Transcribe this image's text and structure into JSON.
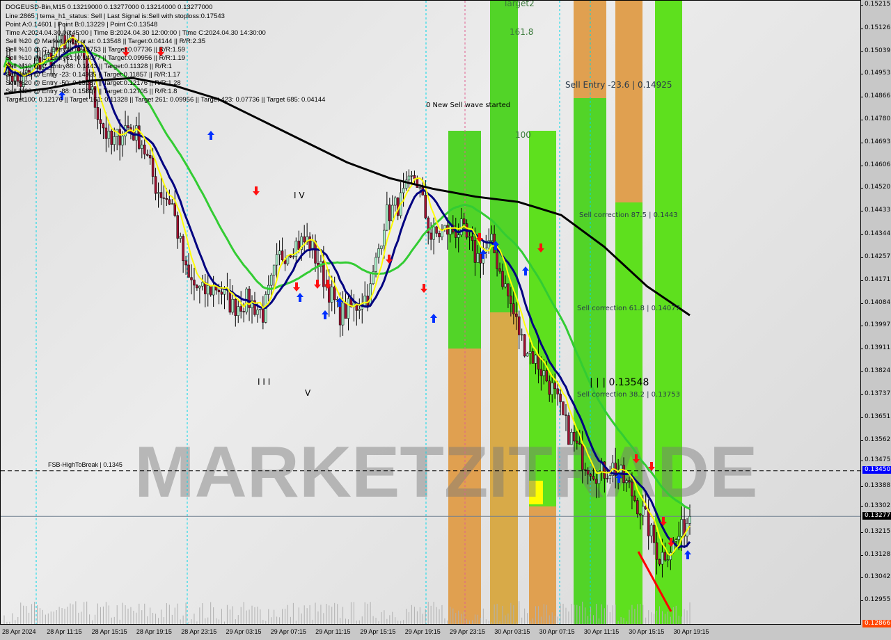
{
  "header": {
    "lines": [
      "DOGEUSD-Bin,M15  0.13219000 0.13277000 0.13214000 0.13277000",
      "Line:2865 | tema_h1_status: Sell | Last Signal is:Sell with stoploss:0.17543",
      "Point A:0.14601 | Point B:0.13229 | Point C:0.13548",
      "Time A:2024.04.30 00:45:00 | Time B:2024.04.30 12:00:00 | Time C:2024.04.30 14:30:00",
      "Sell %20 @ Market price or at: 0.13548 || Target:0.04144 || R/R:2.35",
      "Sell %10 @ C_Entry38: 0.13753 || Target:0.07736 || R/R:1.59",
      "Sell %10 @ C_Entry61: 0.14077 || Target:0.09956 || R/R:1.19",
      "Sell %10 @ C_Entry88: 0.1443 || Target:0.11328 || R/R:1",
      "Sell %10 @ Entry -23: 0.14925 || Target:0.11857 || R/R:1.17",
      "Sell %20 @ Entry -50: 0.15287 || Target:0.12176 || R/R:1.28",
      "Sell %20 @ Entry -88: 0.15817 || Target:0.12705 || R/R:1.8",
      "Target100: 0.12176 || Target 161: 0.11328 || Target 261: 0.09956 || Target 423: 0.07736 || Target 685: 0.04144"
    ]
  },
  "annotations": {
    "target2": "Target2",
    "fib_161": "161.8",
    "fib_100": "100",
    "new_wave": "0 New Sell wave started",
    "sell_entry": "Sell Entry -23.6 | 0.14925",
    "corr_875": "Sell correction 87.5 | 0.1443",
    "corr_618": "Sell correction 61.8 | 0.14077",
    "corr_382": "Sell correction 38.2 | 0.13753",
    "point_c": "| | | 0.13548",
    "wave_iv": "I V",
    "wave_iii": "I I I",
    "wave_v": "V",
    "fsb": "FSB-HighToBreak | 0.1345",
    "watermark": "MARKETZITRADE"
  },
  "colors": {
    "bull_candle": "#a8f0c8",
    "bear_candle": "#a01030",
    "ma_black": "#000000",
    "ma_green": "#33cc33",
    "ma_navy": "#000080",
    "ma_yellow": "#ffff00",
    "zone_green": "#5ee01e",
    "zone_orange": "#e8a050",
    "bid_tag": "#000000",
    "fsb_tag": "#0000ff",
    "low_tag": "#ff4500"
  },
  "chart_data": {
    "type": "candlestick",
    "symbol": "DOGEUSD-Bin",
    "timeframe": "M15",
    "ylim": [
      0.12866,
      0.15215
    ],
    "y_ticks": [
      "0.15215",
      "0.15126",
      "0.15039",
      "0.14953",
      "0.14866",
      "0.14780",
      "0.14693",
      "0.14606",
      "0.14520",
      "0.14433",
      "0.14344",
      "0.14257",
      "0.14171",
      "0.14084",
      "0.13997",
      "0.13911",
      "0.13824",
      "0.13737",
      "0.13651",
      "0.13562",
      "0.13475",
      "0.13388",
      "0.13302",
      "0.13215",
      "0.13128",
      "0.13042",
      "0.12955"
    ],
    "x_ticks": [
      "28 Apr 2024",
      "28 Apr 11:15",
      "28 Apr 15:15",
      "28 Apr 19:15",
      "28 Apr 23:15",
      "29 Apr 03:15",
      "29 Apr 07:15",
      "29 Apr 11:15",
      "29 Apr 15:15",
      "29 Apr 19:15",
      "29 Apr 23:15",
      "30 Apr 03:15",
      "30 Apr 07:15",
      "30 Apr 11:15",
      "30 Apr 15:15",
      "30 Apr 19:15"
    ],
    "close_path": [
      0.14996,
      0.14917,
      0.14983,
      0.15022,
      0.15088,
      0.15022,
      0.14837,
      0.14679,
      0.14758,
      0.14705,
      0.14521,
      0.14468,
      0.14177,
      0.14125,
      0.14151,
      0.14072,
      0.14098,
      0.14045,
      0.14257,
      0.14309,
      0.14323,
      0.14177,
      0.14045,
      0.14072,
      0.14125,
      0.14415,
      0.14468,
      0.14573,
      0.14336,
      0.14362,
      0.14362,
      0.14257,
      0.14309,
      0.14125,
      0.1394,
      0.1386,
      0.13755,
      0.13597,
      0.13491,
      0.13438,
      0.13465,
      0.13385,
      0.1328,
      0.13121,
      0.13174,
      0.13277
    ],
    "ma_black_path": [
      0.1488,
      0.149,
      0.1493,
      0.1494,
      0.1491,
      0.1486,
      0.1478,
      0.147,
      0.1462,
      0.1456,
      0.1452,
      0.1449,
      0.1447,
      0.1442,
      0.143,
      0.1415,
      0.1404
    ],
    "bid": 0.13277,
    "fsb_high_to_break": 0.1345,
    "last_low_tag": "0.12866",
    "bid_tag": "0.13277",
    "fsb_tag": "0.13450"
  }
}
